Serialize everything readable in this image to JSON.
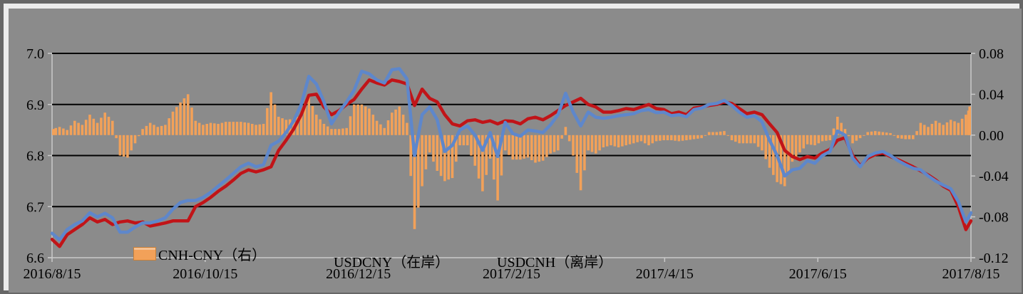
{
  "colors": {
    "background": "#8B8B8B",
    "frame_border": "#676767",
    "frame_highlight": "#ECECEC",
    "gridline": "#000000",
    "axis_line": "#C9C9C9",
    "bar": "#F2A159",
    "cny_line": "#C11418",
    "cnh_line": "#5E87CB",
    "text": "#000000"
  },
  "legend": {
    "items": [
      {
        "label": "CNH-CNY（右）",
        "type": "bar",
        "color": "#F2A159"
      },
      {
        "label": "USDCNY（在岸）",
        "type": "line",
        "color": "#C11418"
      },
      {
        "label": "USDCNH（离岸）",
        "type": "line",
        "color": "#5E87CB"
      }
    ]
  },
  "chart_data": {
    "type": "combo",
    "x_unit": "days since 2016/8/15",
    "x_range": [
      0,
      365
    ],
    "x_tick_labels": [
      "2016/8/15",
      "2016/10/15",
      "2016/12/15",
      "2017/2/15",
      "2017/4/15",
      "2017/6/15",
      "2017/8/15"
    ],
    "left_axis": {
      "min": 6.6,
      "max": 7.0,
      "tick_labels": [
        "7.0",
        "6.9",
        "6.8",
        "6.7",
        "6.6"
      ],
      "tick_values": [
        7.0,
        6.9,
        6.8,
        6.7,
        6.6
      ],
      "gridlines_at": [
        7.0,
        6.9,
        6.8,
        6.7
      ]
    },
    "right_axis": {
      "min": -0.12,
      "max": 0.08,
      "tick_labels": [
        "0.08",
        "0.04",
        "0.00",
        "-0.04",
        "-0.08",
        "-0.12"
      ],
      "tick_values": [
        0.08,
        0.04,
        0.0,
        -0.04,
        -0.08,
        -0.12
      ]
    },
    "grid": "horizontal-only",
    "legend_position": "inside-bottom",
    "t": [
      0,
      3,
      6,
      9,
      12,
      15,
      18,
      21,
      24,
      27,
      30,
      33,
      36,
      39,
      42,
      45,
      48,
      51,
      54,
      57,
      60,
      63,
      66,
      69,
      72,
      75,
      78,
      81,
      84,
      87,
      90,
      93,
      96,
      99,
      102,
      105,
      108,
      111,
      114,
      117,
      120,
      123,
      126,
      129,
      132,
      135,
      138,
      141,
      144,
      147,
      150,
      153,
      156,
      159,
      162,
      165,
      168,
      171,
      174,
      177,
      180,
      183,
      186,
      189,
      192,
      195,
      198,
      201,
      204,
      207,
      210,
      213,
      216,
      219,
      222,
      225,
      228,
      231,
      234,
      237,
      240,
      243,
      246,
      249,
      252,
      255,
      258,
      261,
      264,
      267,
      270,
      273,
      276,
      279,
      282,
      285,
      288,
      291,
      294,
      297,
      300,
      303,
      306,
      309,
      312,
      315,
      318,
      321,
      324,
      327,
      330,
      333,
      336,
      339,
      342,
      345,
      348,
      351,
      354,
      357,
      360,
      363,
      365
    ],
    "series": [
      {
        "name": "USDCNY（在岸）",
        "type": "line",
        "axis": "left",
        "color": "#C11418",
        "values": [
          6.636,
          6.622,
          6.645,
          6.655,
          6.665,
          6.678,
          6.67,
          6.675,
          6.665,
          6.67,
          6.672,
          6.668,
          6.67,
          6.662,
          6.665,
          6.668,
          6.672,
          6.672,
          6.672,
          6.7,
          6.708,
          6.718,
          6.73,
          6.74,
          6.752,
          6.765,
          6.772,
          6.768,
          6.772,
          6.778,
          6.81,
          6.83,
          6.852,
          6.88,
          6.918,
          6.92,
          6.895,
          6.88,
          6.888,
          6.9,
          6.91,
          6.93,
          6.948,
          6.942,
          6.938,
          6.948,
          6.945,
          6.94,
          6.898,
          6.93,
          6.912,
          6.905,
          6.88,
          6.862,
          6.858,
          6.868,
          6.87,
          6.865,
          6.868,
          6.862,
          6.868,
          6.867,
          6.862,
          6.872,
          6.875,
          6.87,
          6.878,
          6.888,
          6.898,
          6.905,
          6.912,
          6.9,
          6.895,
          6.885,
          6.885,
          6.888,
          6.892,
          6.89,
          6.895,
          6.9,
          6.892,
          6.89,
          6.882,
          6.885,
          6.88,
          6.893,
          6.895,
          6.898,
          6.9,
          6.905,
          6.902,
          6.892,
          6.882,
          6.885,
          6.88,
          6.862,
          6.845,
          6.81,
          6.798,
          6.792,
          6.798,
          6.795,
          6.805,
          6.812,
          6.83,
          6.835,
          6.8,
          6.78,
          6.795,
          6.802,
          6.805,
          6.798,
          6.792,
          6.785,
          6.778,
          6.77,
          6.762,
          6.752,
          6.74,
          6.732,
          6.7,
          6.655,
          6.672
        ]
      },
      {
        "name": "USDCNH（离岸）",
        "type": "line",
        "axis": "left",
        "color": "#5E87CB",
        "values": [
          6.648,
          6.635,
          6.655,
          6.665,
          6.672,
          6.688,
          6.68,
          6.687,
          6.678,
          6.65,
          6.65,
          6.66,
          6.668,
          6.668,
          6.672,
          6.678,
          6.695,
          6.708,
          6.712,
          6.712,
          6.718,
          6.728,
          6.74,
          6.752,
          6.765,
          6.778,
          6.785,
          6.778,
          6.782,
          6.82,
          6.828,
          6.845,
          6.868,
          6.9,
          6.955,
          6.94,
          6.905,
          6.862,
          6.885,
          6.905,
          6.928,
          6.965,
          6.96,
          6.948,
          6.942,
          6.968,
          6.97,
          6.95,
          6.8,
          6.88,
          6.895,
          6.87,
          6.808,
          6.82,
          6.85,
          6.858,
          6.84,
          6.81,
          6.845,
          6.798,
          6.865,
          6.843,
          6.838,
          6.85,
          6.848,
          6.845,
          6.86,
          6.88,
          6.922,
          6.885,
          6.858,
          6.885,
          6.875,
          6.873,
          6.875,
          6.878,
          6.88,
          6.882,
          6.888,
          6.89,
          6.884,
          6.885,
          6.878,
          6.88,
          6.876,
          6.89,
          6.893,
          6.9,
          6.902,
          6.908,
          6.898,
          6.885,
          6.875,
          6.878,
          6.866,
          6.83,
          6.8,
          6.76,
          6.772,
          6.775,
          6.79,
          6.785,
          6.8,
          6.808,
          6.848,
          6.84,
          6.795,
          6.778,
          6.798,
          6.805,
          6.808,
          6.8,
          6.79,
          6.782,
          6.775,
          6.772,
          6.76,
          6.75,
          6.742,
          6.735,
          6.71,
          6.67,
          6.688
        ]
      },
      {
        "name": "CNH-CNY（右）",
        "type": "bar",
        "axis": "right",
        "color": "#F2A159",
        "values": [
          0.006,
          0.008,
          0.005,
          0.014,
          0.01,
          0.02,
          0.012,
          0.022,
          0.014,
          -0.02,
          -0.022,
          -0.008,
          0.006,
          0.012,
          0.008,
          0.01,
          0.023,
          0.032,
          0.04,
          0.014,
          0.01,
          0.012,
          0.011,
          0.013,
          0.013,
          0.013,
          0.012,
          0.01,
          0.011,
          0.042,
          0.018,
          0.015,
          0.016,
          0.02,
          0.037,
          0.02,
          0.011,
          0.006,
          0.006,
          0.007,
          0.03,
          0.03,
          0.026,
          0.014,
          0.007,
          0.022,
          0.028,
          0.012,
          -0.092,
          -0.05,
          -0.017,
          -0.035,
          -0.045,
          -0.042,
          -0.01,
          -0.01,
          -0.03,
          -0.055,
          -0.023,
          -0.064,
          -0.015,
          -0.024,
          -0.024,
          -0.022,
          -0.027,
          -0.025,
          -0.018,
          -0.015,
          0.008,
          -0.02,
          -0.054,
          -0.015,
          -0.018,
          -0.012,
          -0.01,
          -0.012,
          -0.01,
          -0.008,
          -0.006,
          -0.01,
          -0.006,
          -0.005,
          -0.005,
          -0.006,
          -0.005,
          -0.004,
          -0.003,
          0.003,
          0.003,
          0.004,
          -0.005,
          -0.008,
          -0.008,
          -0.008,
          -0.015,
          -0.032,
          -0.046,
          -0.05,
          -0.026,
          -0.017,
          -0.009,
          -0.01,
          -0.006,
          -0.005,
          0.018,
          0.006,
          -0.008,
          -0.003,
          0.003,
          0.004,
          0.003,
          0.002,
          -0.003,
          -0.004,
          -0.004,
          0.012,
          0.008,
          0.014,
          0.01,
          0.015,
          0.012,
          0.02,
          0.028
        ]
      }
    ]
  }
}
